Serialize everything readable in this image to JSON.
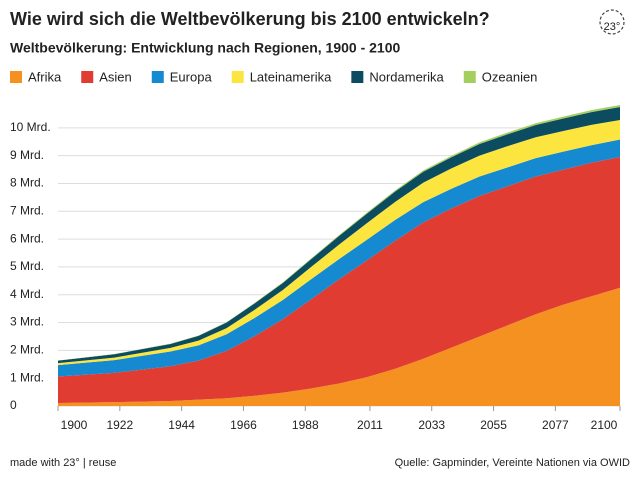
{
  "chart_data": {
    "type": "stacked-area",
    "title": "Wie wird sich die Weltbevölkerung bis 2100 entwickeln?",
    "subtitle": "Weltbevölkerung: Entwicklung nach Regionen, 1900 - 2100",
    "logo": "23°",
    "footer_left": "made with 23° | reuse",
    "footer_right": "Quelle: Gapminder, Vereinte Nationen via OWID",
    "x": [
      1900,
      1920,
      1940,
      1950,
      1960,
      1970,
      1980,
      1990,
      2000,
      2010,
      2020,
      2030,
      2040,
      2050,
      2060,
      2070,
      2080,
      2090,
      2100
    ],
    "xlim": [
      1900,
      2100
    ],
    "xticks": [
      1900,
      1922,
      1944,
      1966,
      1988,
      2011,
      2033,
      2055,
      2077,
      2100
    ],
    "ylim": [
      0,
      11
    ],
    "yticks": [
      0,
      {
        "value": 1,
        "label": "1 Mrd."
      },
      {
        "value": 2,
        "label": "2 Mrd."
      },
      {
        "value": 3,
        "label": "3 Mrd."
      },
      {
        "value": 4,
        "label": "4 Mrd."
      },
      {
        "value": 5,
        "label": "5 Mrd."
      },
      {
        "value": 6,
        "label": "6 Mrd."
      },
      {
        "value": 7,
        "label": "7 Mrd."
      },
      {
        "value": 8,
        "label": "8 Mrd."
      },
      {
        "value": 9,
        "label": "9 Mrd."
      },
      {
        "value": 10,
        "label": "10 Mrd."
      }
    ],
    "grid": true,
    "series": [
      {
        "name": "Afrika",
        "color": "#f59121",
        "values": [
          0.11,
          0.14,
          0.18,
          0.23,
          0.28,
          0.37,
          0.48,
          0.63,
          0.81,
          1.04,
          1.34,
          1.7,
          2.1,
          2.5,
          2.9,
          3.3,
          3.65,
          3.95,
          4.25
        ]
      },
      {
        "name": "Asien",
        "color": "#e03c31",
        "values": [
          0.95,
          1.05,
          1.25,
          1.4,
          1.7,
          2.14,
          2.64,
          3.2,
          3.74,
          4.2,
          4.6,
          4.9,
          5.0,
          5.05,
          5.0,
          4.95,
          4.85,
          4.8,
          4.7
        ]
      },
      {
        "name": "Europa",
        "color": "#168ad0",
        "values": [
          0.41,
          0.46,
          0.53,
          0.55,
          0.6,
          0.66,
          0.69,
          0.72,
          0.73,
          0.74,
          0.75,
          0.73,
          0.71,
          0.7,
          0.68,
          0.66,
          0.65,
          0.63,
          0.63
        ]
      },
      {
        "name": "Lateinamerika",
        "color": "#fde53f",
        "values": [
          0.07,
          0.09,
          0.13,
          0.17,
          0.22,
          0.29,
          0.36,
          0.44,
          0.52,
          0.6,
          0.65,
          0.7,
          0.73,
          0.75,
          0.76,
          0.75,
          0.74,
          0.73,
          0.7
        ]
      },
      {
        "name": "Nordamerika",
        "color": "#0c4c61",
        "values": [
          0.09,
          0.12,
          0.14,
          0.17,
          0.2,
          0.23,
          0.25,
          0.28,
          0.31,
          0.34,
          0.37,
          0.39,
          0.4,
          0.42,
          0.43,
          0.44,
          0.45,
          0.46,
          0.47
        ]
      },
      {
        "name": "Ozeanien",
        "color": "#a5cf5d",
        "values": [
          0.006,
          0.009,
          0.011,
          0.013,
          0.016,
          0.02,
          0.023,
          0.027,
          0.031,
          0.037,
          0.043,
          0.048,
          0.053,
          0.057,
          0.06,
          0.064,
          0.067,
          0.069,
          0.07
        ]
      }
    ]
  }
}
